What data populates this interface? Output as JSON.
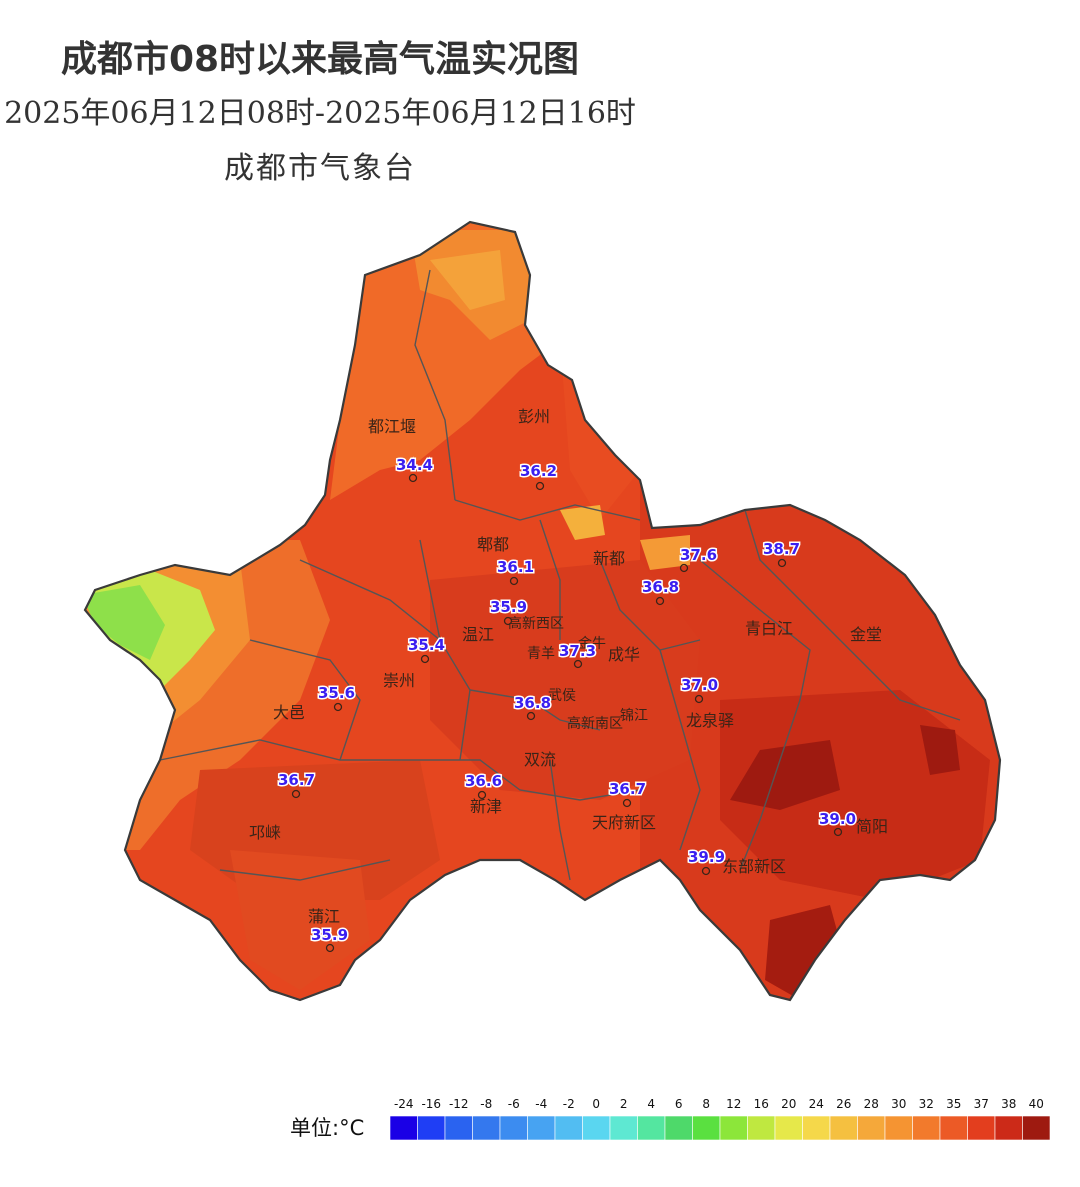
{
  "header": {
    "title": "成都市08时以来最高气温实况图",
    "subtitle": "2025年06月12日08时-2025年06月12日16时",
    "agency": "成都市气象台"
  },
  "districts": [
    {
      "name": "都江堰"
    },
    {
      "name": "彭州"
    },
    {
      "name": "郫都"
    },
    {
      "name": "新都"
    },
    {
      "name": "温江"
    },
    {
      "name": "高新西区"
    },
    {
      "name": "金牛"
    },
    {
      "name": "青羊"
    },
    {
      "name": "成华"
    },
    {
      "name": "青白江"
    },
    {
      "name": "金堂"
    },
    {
      "name": "崇州"
    },
    {
      "name": "大邑"
    },
    {
      "name": "武侯"
    },
    {
      "name": "锦江"
    },
    {
      "name": "高新南区"
    },
    {
      "name": "龙泉驿"
    },
    {
      "name": "双流"
    },
    {
      "name": "新津"
    },
    {
      "name": "邛崃"
    },
    {
      "name": "天府新区"
    },
    {
      "name": "东部新区"
    },
    {
      "name": "简阳"
    },
    {
      "name": "蒲江"
    }
  ],
  "stations": [
    {
      "value": "34.4"
    },
    {
      "value": "36.2"
    },
    {
      "value": "36.1"
    },
    {
      "value": "37.6"
    },
    {
      "value": "38.7"
    },
    {
      "value": "36.8"
    },
    {
      "value": "35.9"
    },
    {
      "value": "35.4"
    },
    {
      "value": "37.3"
    },
    {
      "value": "35.6"
    },
    {
      "value": "37.0"
    },
    {
      "value": "36.8"
    },
    {
      "value": "36.7"
    },
    {
      "value": "36.6"
    },
    {
      "value": "36.7"
    },
    {
      "value": "39.0"
    },
    {
      "value": "39.9"
    },
    {
      "value": "35.9"
    }
  ],
  "legend": {
    "unit_label": "单位:°C",
    "ticks": [
      "-24",
      "-16",
      "-12",
      "-8",
      "-6",
      "-4",
      "-2",
      "0",
      "2",
      "4",
      "6",
      "8",
      "12",
      "16",
      "20",
      "24",
      "26",
      "28",
      "30",
      "32",
      "35",
      "37",
      "38",
      "40"
    ],
    "colors": [
      "#1a00e6",
      "#1f3ef5",
      "#2a63f0",
      "#3478ee",
      "#3c8cf0",
      "#47a3f2",
      "#52bdf2",
      "#5ad6f0",
      "#5ee8d2",
      "#54e6a0",
      "#4ed96a",
      "#5ae040",
      "#8ce63a",
      "#bfe840",
      "#e6e84a",
      "#f5d84a",
      "#f5c040",
      "#f5a83a",
      "#f59432",
      "#f27a2c",
      "#ec5a26",
      "#e33e1e",
      "#cc2a18",
      "#9e1a10"
    ]
  },
  "colors": {
    "hot": "#d93a1c",
    "very_hot": "#a81e10",
    "warm": "#ee5a24",
    "mild": "#f28a30",
    "cool": "#8ee04a",
    "boundary": "#555555",
    "station_text": "#3a1ef0"
  }
}
